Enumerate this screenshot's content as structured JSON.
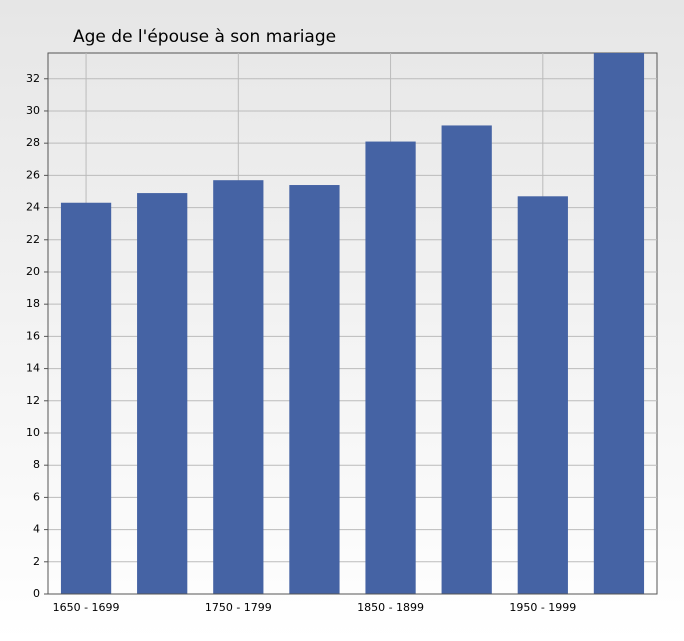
{
  "chart_data": {
    "type": "bar",
    "title": "Age de l'épouse à son mariage",
    "categories": [
      "1650 - 1699",
      null,
      "1750 - 1799",
      null,
      "1850 - 1899",
      null,
      "1950 - 1999",
      null
    ],
    "values": [
      24.3,
      24.9,
      25.7,
      25.4,
      28.1,
      29.1,
      24.7,
      33.6
    ],
    "color": "#4563a4",
    "ylim": [
      0,
      33.6
    ],
    "yticks": [
      0,
      2,
      4,
      6,
      8,
      10,
      12,
      14,
      16,
      18,
      20,
      22,
      24,
      26,
      28,
      30,
      32
    ],
    "grid": true
  }
}
